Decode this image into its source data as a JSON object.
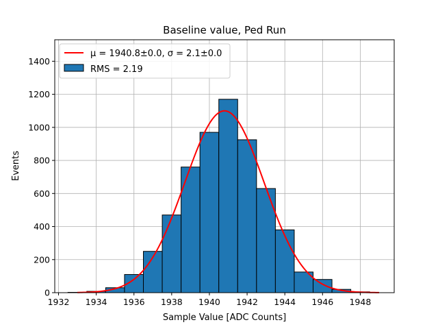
{
  "chart_data": {
    "type": "bar",
    "title": "Baseline value, Ped Run",
    "xlabel": "Sample Value [ADC Counts]",
    "ylabel": "Events",
    "xlim": [
      1931.8,
      1949.8
    ],
    "ylim": [
      0,
      1530
    ],
    "xticks": [
      1932,
      1934,
      1936,
      1938,
      1940,
      1942,
      1944,
      1946,
      1948
    ],
    "yticks": [
      0,
      200,
      400,
      600,
      800,
      1000,
      1200,
      1400
    ],
    "grid": true,
    "legend_position": "top-left",
    "bin_width": 1,
    "bins": [
      1932.5,
      1933.5,
      1934.5,
      1935.5,
      1936.5,
      1937.5,
      1938.5,
      1939.5,
      1940.5,
      1941.5,
      1942.5,
      1943.5,
      1944.5,
      1945.5,
      1946.5,
      1947.5
    ],
    "values": [
      2,
      8,
      30,
      110,
      250,
      470,
      760,
      970,
      1170,
      925,
      630,
      380,
      125,
      80,
      20,
      5
    ],
    "bar_color": "#1f77b4",
    "fit": {
      "mu": 1940.8,
      "sigma": 2.1,
      "amplitude": 1100,
      "x_range": [
        1933,
        1949
      ],
      "color": "#ff0000"
    },
    "legend": [
      {
        "label": "μ = 1940.8±0.0, σ = 2.1±0.0",
        "kind": "line",
        "color": "#ff0000"
      },
      {
        "label": "RMS = 2.19",
        "kind": "patch",
        "color": "#1f77b4"
      }
    ]
  }
}
